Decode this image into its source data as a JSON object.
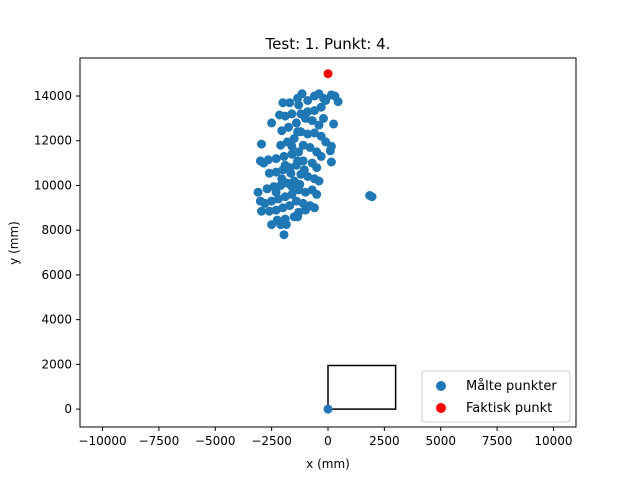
{
  "chart_data": {
    "type": "scatter",
    "title": "Test: 1. Punkt: 4.",
    "xlabel": "x (mm)",
    "ylabel": "y (mm)",
    "xlim": [
      -11000,
      11000
    ],
    "ylim": [
      -800,
      15700
    ],
    "xticks": [
      -10000,
      -7500,
      -5000,
      -2500,
      0,
      2500,
      5000,
      7500,
      10000
    ],
    "xtick_labels": [
      "−10000",
      "−7500",
      "−5000",
      "−2500",
      "0",
      "2500",
      "5000",
      "7500",
      "10000"
    ],
    "yticks": [
      0,
      2000,
      4000,
      6000,
      8000,
      10000,
      12000,
      14000
    ],
    "ytick_labels": [
      "0",
      "2000",
      "4000",
      "6000",
      "8000",
      "10000",
      "12000",
      "14000"
    ],
    "grid": false,
    "legend_position": "lower-right",
    "series": [
      {
        "name": "Målte punkter",
        "color": "#1f77b4",
        "marker": "circle",
        "cluster": {
          "description_center_x": -1500,
          "center_y": 10900
        },
        "points": [
          [
            -1150,
            14100
          ],
          [
            -1350,
            13900
          ],
          [
            -1700,
            13700
          ],
          [
            -2000,
            13700
          ],
          [
            -1300,
            13600
          ],
          [
            -900,
            13800
          ],
          [
            -600,
            14000
          ],
          [
            -400,
            14100
          ],
          [
            -200,
            13900
          ],
          [
            -300,
            13500
          ],
          [
            -100,
            13800
          ],
          [
            150,
            14050
          ],
          [
            300,
            14000
          ],
          [
            450,
            13750
          ],
          [
            -600,
            13350
          ],
          [
            -900,
            13300
          ],
          [
            -1200,
            13200
          ],
          [
            -1600,
            13200
          ],
          [
            -1900,
            13100
          ],
          [
            -2150,
            13150
          ],
          [
            -1000,
            13000
          ],
          [
            -700,
            12900
          ],
          [
            -400,
            12700
          ],
          [
            -200,
            13000
          ],
          [
            250,
            12750
          ],
          [
            -2500,
            12800
          ],
          [
            -1400,
            12800
          ],
          [
            -1750,
            12600
          ],
          [
            -2050,
            12450
          ],
          [
            -1200,
            12400
          ],
          [
            -900,
            12300
          ],
          [
            -600,
            12350
          ],
          [
            -300,
            12200
          ],
          [
            -100,
            11950
          ],
          [
            150,
            11750
          ],
          [
            100,
            11550
          ],
          [
            -1500,
            12100
          ],
          [
            -1800,
            11950
          ],
          [
            -2100,
            11800
          ],
          [
            -2950,
            11850
          ],
          [
            -1100,
            11800
          ],
          [
            -800,
            11700
          ],
          [
            -500,
            11500
          ],
          [
            -300,
            11300
          ],
          [
            150,
            11050
          ],
          [
            -1300,
            11500
          ],
          [
            -1600,
            11400
          ],
          [
            -1950,
            11300
          ],
          [
            -2300,
            11200
          ],
          [
            -2650,
            11150
          ],
          [
            -3000,
            11100
          ],
          [
            -2850,
            11000
          ],
          [
            -1100,
            11100
          ],
          [
            -700,
            11000
          ],
          [
            -500,
            10800
          ],
          [
            -1400,
            10900
          ],
          [
            -1700,
            10800
          ],
          [
            -2000,
            10700
          ],
          [
            -2300,
            10600
          ],
          [
            -2600,
            10550
          ],
          [
            -1200,
            10500
          ],
          [
            -900,
            10400
          ],
          [
            -600,
            10300
          ],
          [
            -400,
            10200
          ],
          [
            -1500,
            10200
          ],
          [
            -1800,
            10100
          ],
          [
            -2100,
            10000
          ],
          [
            -2400,
            9950
          ],
          [
            -2700,
            9850
          ],
          [
            -1300,
            9800
          ],
          [
            -1000,
            9700
          ],
          [
            -700,
            9800
          ],
          [
            -500,
            9600
          ],
          [
            -1600,
            9600
          ],
          [
            -1900,
            9500
          ],
          [
            -2200,
            9400
          ],
          [
            -2500,
            9300
          ],
          [
            -2800,
            9200
          ],
          [
            -3100,
            9700
          ],
          [
            -3000,
            9300
          ],
          [
            -1400,
            9300
          ],
          [
            -1100,
            9200
          ],
          [
            -800,
            9100
          ],
          [
            -600,
            9000
          ],
          [
            -1700,
            9100
          ],
          [
            -2000,
            9000
          ],
          [
            -2300,
            8900
          ],
          [
            -2600,
            8850
          ],
          [
            -2950,
            8850
          ],
          [
            -1300,
            8800
          ],
          [
            -1000,
            8900
          ],
          [
            -1500,
            8600
          ],
          [
            -1900,
            8500
          ],
          [
            -2250,
            8450
          ],
          [
            -1350,
            8600
          ],
          [
            -2500,
            8250
          ],
          [
            -2100,
            8250
          ],
          [
            -1850,
            8250
          ],
          [
            -1950,
            7800
          ],
          [
            -1350,
            8650
          ],
          [
            -1600,
            9950
          ],
          [
            -1250,
            10050
          ],
          [
            -1650,
            10550
          ],
          [
            -1350,
            11100
          ],
          [
            -1600,
            11750
          ],
          [
            -1350,
            12400
          ],
          [
            -1050,
            10700
          ],
          [
            -2050,
            10300
          ],
          [
            -2300,
            9700
          ],
          [
            -1900,
            10900
          ],
          [
            1850,
            9550
          ],
          [
            1950,
            9500
          ],
          [
            0,
            0
          ]
        ]
      },
      {
        "name": "Faktisk punkt",
        "color": "#ff0000",
        "marker": "circle",
        "points": [
          [
            0,
            15000
          ]
        ]
      }
    ],
    "rectangle": {
      "x0": 0,
      "y0": 0,
      "x1": 3000,
      "y1": 1950,
      "color": "#000000"
    }
  }
}
